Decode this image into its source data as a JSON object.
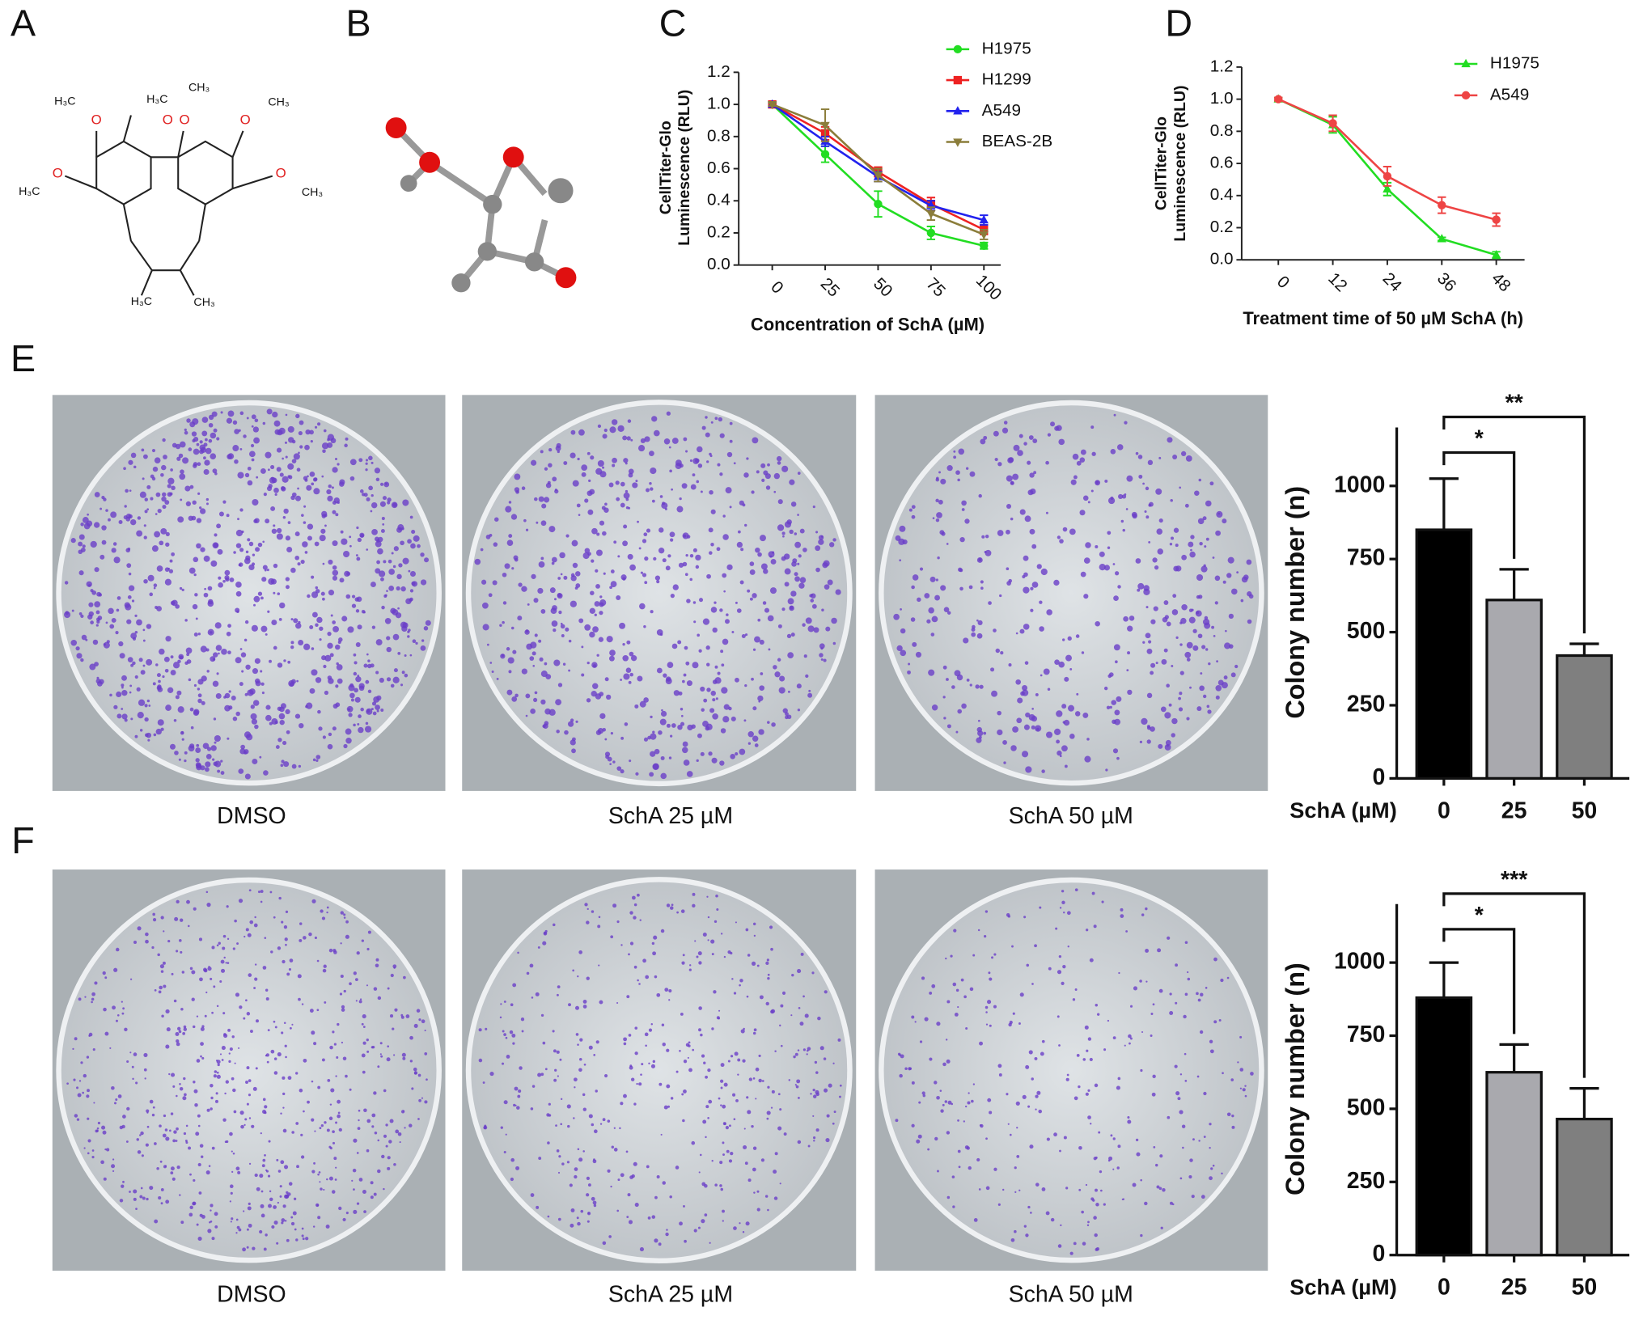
{
  "panels": [
    "A",
    "B",
    "C",
    "D",
    "E",
    "F"
  ],
  "structure": {
    "labels": [
      "H₃C",
      "H₃C",
      "CH₃",
      "CH₃",
      "H₃C",
      "CH₃",
      "H₃C",
      "CH₃",
      "O",
      "O",
      "O",
      "O",
      "O",
      "O"
    ]
  },
  "captions": {
    "E": [
      "DMSO",
      "SchA 25 µM",
      "SchA 50 µM"
    ],
    "F": [
      "DMSO",
      "SchA 25 µM",
      "SchA 50 µM"
    ]
  },
  "chart_data": [
    {
      "type": "line",
      "y_label": [
        "CellTiter-Glo",
        "Luminescence (RLU)"
      ],
      "x_label": "Concentration of SchA (µM)",
      "categories": [
        "0",
        "25",
        "50",
        "75",
        "100"
      ],
      "ylim": [
        0,
        1.2
      ],
      "yticks": [
        {
          "value": 0,
          "label": "0.0"
        },
        0.2,
        0.4,
        0.6,
        0.8,
        {
          "value": 1,
          "label": "1.0"
        },
        1.2
      ],
      "legend": "upper right",
      "series": [
        {
          "name": "H1975",
          "color": "#22dd22",
          "marker": "circle",
          "values": [
            1.0,
            0.69,
            0.38,
            0.2,
            0.12
          ],
          "errors": [
            0.01,
            0.05,
            0.08,
            0.04,
            0.02
          ]
        },
        {
          "name": "H1299",
          "color": "#ee2222",
          "marker": "square",
          "values": [
            1.0,
            0.82,
            0.58,
            0.38,
            0.22
          ],
          "errors": [
            0.01,
            0.04,
            0.03,
            0.04,
            0.03
          ]
        },
        {
          "name": "A549",
          "color": "#2222ee",
          "marker": "triangle-up",
          "values": [
            1.0,
            0.77,
            0.55,
            0.37,
            0.28
          ],
          "errors": [
            0.01,
            0.03,
            0.03,
            0.03,
            0.03
          ]
        },
        {
          "name": "BEAS-2B",
          "color": "#8b7d3a",
          "marker": "triangle-down",
          "values": [
            1.0,
            0.87,
            0.56,
            0.32,
            0.19
          ],
          "errors": [
            0.01,
            0.1,
            0.04,
            0.04,
            0.03
          ]
        }
      ]
    },
    {
      "type": "line",
      "y_label": [
        "CellTiter-Glo",
        "Luminescence (RLU)"
      ],
      "x_label": "Treatment time of 50 µM SchA (h)",
      "categories": [
        "0",
        "12",
        "24",
        "36",
        "48"
      ],
      "ylim": [
        0,
        1.2
      ],
      "yticks": [
        {
          "value": 0,
          "label": "0.0"
        },
        0.2,
        0.4,
        0.6,
        0.8,
        {
          "value": 1,
          "label": "1.0"
        },
        1.2
      ],
      "legend": "upper right",
      "series": [
        {
          "name": "H1975",
          "color": "#22dd22",
          "marker": "triangle-up",
          "values": [
            1.0,
            0.84,
            0.44,
            0.13,
            0.03
          ],
          "errors": [
            0.01,
            0.05,
            0.04,
            0.01,
            0.02
          ]
        },
        {
          "name": "A549",
          "color": "#ee4444",
          "marker": "circle",
          "values": [
            1.0,
            0.85,
            0.52,
            0.34,
            0.25
          ],
          "errors": [
            0.01,
            0.05,
            0.06,
            0.05,
            0.04
          ]
        }
      ]
    },
    {
      "type": "bar",
      "y_label": "Colony number (n)",
      "x_label": "SchA (µM)",
      "categories": [
        "0",
        "25",
        "50"
      ],
      "values": [
        850,
        610,
        420
      ],
      "errors": [
        175,
        105,
        40
      ],
      "colors": [
        "#000000",
        "#a9a9ae",
        "#7f7f7f"
      ],
      "ylim": [
        0,
        1200
      ],
      "yticks": [
        0,
        250,
        500,
        750,
        1000
      ],
      "annotations": [
        "*",
        "**"
      ]
    },
    {
      "type": "bar",
      "y_label": "Colony number (n)",
      "x_label": "SchA (µM)",
      "categories": [
        "0",
        "25",
        "50"
      ],
      "values": [
        880,
        625,
        465
      ],
      "errors": [
        120,
        95,
        105
      ],
      "colors": [
        "#000000",
        "#a9a9ae",
        "#7f7f7f"
      ],
      "ylim": [
        0,
        1200
      ],
      "yticks": [
        0,
        250,
        500,
        750,
        1000
      ],
      "annotations": [
        "*",
        "***"
      ]
    }
  ]
}
